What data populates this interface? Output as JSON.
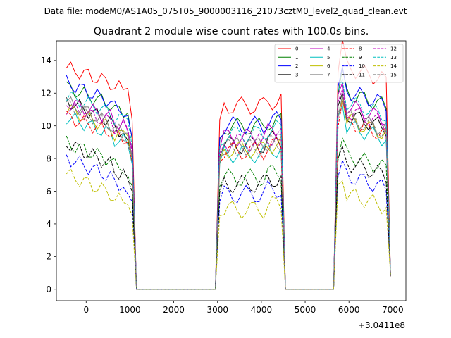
{
  "figure": {
    "suptitle": "Data file: modeM0/AS1A05_075T05_9000003116_21073cztM0_level2_quad_clean.evt"
  },
  "chart_data": {
    "type": "line",
    "title": "Quadrant 2 module wise count rates with 100.0s bins.",
    "xlabel": "",
    "ylabel": "",
    "x_offset_label": "+3.0411e8",
    "xlim": [
      -680,
      7300
    ],
    "ylim": [
      -0.7,
      15.2
    ],
    "xticks": [
      0,
      1000,
      2000,
      3000,
      4000,
      5000,
      6000,
      7000
    ],
    "xtick_labels": [
      "0",
      "1000",
      "2000",
      "3000",
      "4000",
      "5000",
      "6000",
      "7000"
    ],
    "yticks": [
      0,
      2,
      4,
      6,
      8,
      10,
      12,
      14
    ],
    "ytick_labels": [
      "0",
      "2",
      "4",
      "6",
      "8",
      "10",
      "12",
      "14"
    ],
    "x": [
      -450,
      -350,
      -250,
      -150,
      -50,
      50,
      150,
      250,
      350,
      450,
      550,
      650,
      750,
      850,
      950,
      1050,
      1150,
      1250,
      1350,
      1450,
      1550,
      1650,
      1750,
      1850,
      1950,
      2050,
      2150,
      2250,
      2350,
      2450,
      2550,
      2650,
      2750,
      2850,
      2950,
      3050,
      3150,
      3250,
      3350,
      3450,
      3550,
      3650,
      3750,
      3850,
      3950,
      4050,
      4150,
      4250,
      4350,
      4450,
      4550,
      4650,
      4750,
      4850,
      4950,
      5050,
      5150,
      5250,
      5350,
      5450,
      5550,
      5650,
      5750,
      5850,
      5950,
      6050,
      6150,
      6250,
      6350,
      6450,
      6550,
      6650,
      6750,
      6850,
      6950
    ],
    "legend": {
      "location": "upper right",
      "columns": 4
    },
    "series": [
      {
        "name": "0",
        "color": "#ff0000",
        "dash": "solid",
        "level": 12.2
      },
      {
        "name": "1",
        "color": "#008000",
        "dash": "solid",
        "level": 10.8
      },
      {
        "name": "2",
        "color": "#0000ff",
        "dash": "solid",
        "level": 10.9
      },
      {
        "name": "3",
        "color": "#000000",
        "dash": "solid",
        "level": 9.6
      },
      {
        "name": "4",
        "color": "#bf00bf",
        "dash": "solid",
        "level": 10.1
      },
      {
        "name": "5",
        "color": "#00bfbf",
        "dash": "solid",
        "level": 9.0
      },
      {
        "name": "6",
        "color": "#bfbf00",
        "dash": "solid",
        "level": 9.3
      },
      {
        "name": "7",
        "color": "#808080",
        "dash": "solid",
        "level": 9.5
      },
      {
        "name": "8",
        "color": "#ff0000",
        "dash": "dashed",
        "level": 9.2
      },
      {
        "name": "9",
        "color": "#008000",
        "dash": "dashed",
        "level": 7.4
      },
      {
        "name": "10",
        "color": "#0000ff",
        "dash": "dashed",
        "level": 6.3
      },
      {
        "name": "11",
        "color": "#000000",
        "dash": "dashed",
        "level": 7.0
      },
      {
        "name": "12",
        "color": "#bf00bf",
        "dash": "dashed",
        "level": 9.8
      },
      {
        "name": "13",
        "color": "#00bfbf",
        "dash": "dashed",
        "level": 10.3
      },
      {
        "name": "14",
        "color": "#bfbf00",
        "dash": "dashed",
        "level": 5.3
      },
      {
        "name": "15",
        "color": "#808080",
        "dash": "dashed",
        "level": 9.4
      }
    ]
  }
}
